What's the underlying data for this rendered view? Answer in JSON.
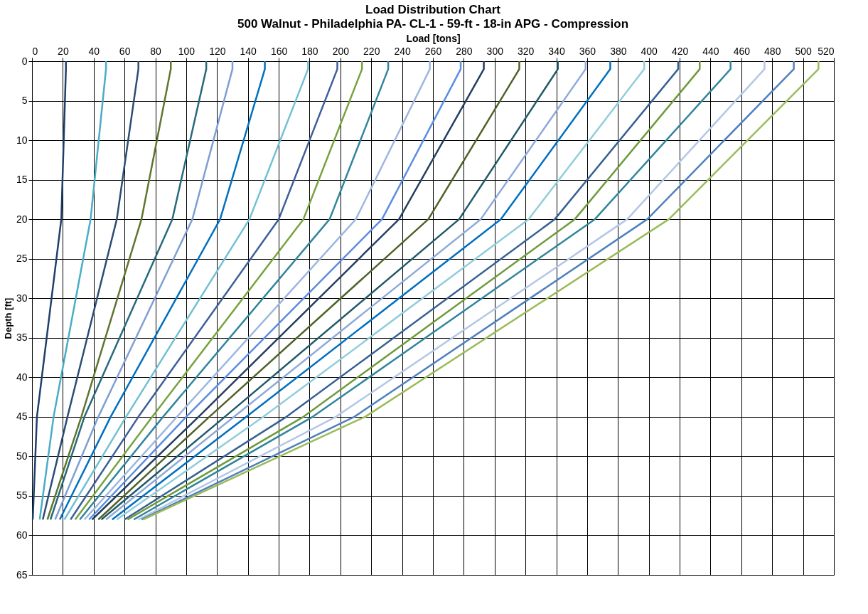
{
  "chart_data": {
    "type": "line",
    "title": "Load Distribution Chart",
    "subtitle": "500 Walnut - Philadelphia PA- CL-1 - 59-ft - 18-in APG - Compression",
    "xlabel": "Load [tons]",
    "ylabel": "Depth [ft]",
    "xlim": [
      0,
      520
    ],
    "xticks": [
      0,
      20,
      40,
      60,
      80,
      100,
      120,
      140,
      160,
      180,
      200,
      220,
      240,
      260,
      280,
      300,
      320,
      340,
      360,
      380,
      400,
      420,
      440,
      460,
      480,
      500,
      520
    ],
    "ylim": [
      65,
      0
    ],
    "yticks": [
      0,
      5,
      10,
      15,
      20,
      25,
      30,
      35,
      40,
      45,
      50,
      55,
      60,
      65
    ],
    "grid": true,
    "legend": false,
    "marker": "none",
    "line_style": "solid",
    "series": [
      {
        "color": "#1f3f6b",
        "x": [
          22,
          22,
          19,
          3.2,
          0.5
        ],
        "values": [
          0,
          1,
          20,
          45,
          58
        ]
      },
      {
        "color": "#4bacc6",
        "x": [
          48,
          48,
          38,
          14,
          5
        ],
        "values": [
          0,
          1,
          20,
          45,
          58
        ]
      },
      {
        "color": "#2c4d75",
        "x": [
          69,
          69,
          55,
          23,
          7
        ],
        "values": [
          0,
          1,
          20,
          45,
          58
        ]
      },
      {
        "color": "#5f7530",
        "x": [
          90,
          90,
          71,
          32,
          10
        ],
        "values": [
          0,
          1,
          20,
          45,
          58
        ]
      },
      {
        "color": "#276a7c",
        "x": [
          113,
          113,
          91,
          34,
          12
        ],
        "values": [
          0,
          1,
          20,
          45,
          58
        ]
      },
      {
        "color": "#7f9fd3",
        "x": [
          130,
          130,
          104,
          43,
          15
        ],
        "values": [
          0,
          1,
          20,
          45,
          58
        ]
      },
      {
        "color": "#0070c0",
        "x": [
          151,
          151,
          122,
          51,
          18
        ],
        "values": [
          0,
          1,
          20,
          45,
          58
        ]
      },
      {
        "color": "#72c0d4",
        "x": [
          179,
          179,
          141,
          61,
          21
        ],
        "values": [
          0,
          1,
          20,
          45,
          58
        ]
      },
      {
        "color": "#3d5f99",
        "x": [
          198,
          198,
          160,
          69,
          25
        ],
        "values": [
          0,
          1,
          20,
          45,
          58
        ]
      },
      {
        "color": "#77a23c",
        "x": [
          214,
          214,
          176,
          78,
          28
        ],
        "values": [
          0,
          1,
          20,
          45,
          58
        ]
      },
      {
        "color": "#31859c",
        "x": [
          231,
          231,
          193,
          85,
          31
        ],
        "values": [
          0,
          1,
          20,
          45,
          58
        ]
      },
      {
        "color": "#9db7e0",
        "x": [
          258,
          258,
          210,
          94,
          34
        ],
        "values": [
          0,
          1,
          20,
          45,
          58
        ]
      },
      {
        "color": "#5b8ee0",
        "x": [
          278,
          278,
          227,
          100,
          37
        ],
        "values": [
          0,
          1,
          20,
          45,
          58
        ]
      },
      {
        "color": "#243f60",
        "x": [
          293,
          293,
          238,
          108,
          39
        ],
        "values": [
          0,
          1,
          20,
          45,
          58
        ]
      },
      {
        "color": "#4f6228",
        "x": [
          316,
          316,
          257,
          115,
          43
        ],
        "values": [
          0,
          1,
          20,
          45,
          58
        ]
      },
      {
        "color": "#215968",
        "x": [
          341,
          341,
          277,
          125,
          45
        ],
        "values": [
          0,
          1,
          20,
          45,
          58
        ]
      },
      {
        "color": "#8eaadb",
        "x": [
          359,
          359,
          291,
          131,
          48
        ],
        "values": [
          0,
          1,
          20,
          45,
          58
        ]
      },
      {
        "color": "#0070c0",
        "x": [
          375,
          375,
          304,
          139,
          52
        ],
        "values": [
          0,
          1,
          20,
          45,
          58
        ]
      },
      {
        "color": "#92cddc",
        "x": [
          397,
          397,
          322,
          150,
          55
        ],
        "values": [
          0,
          1,
          20,
          45,
          58
        ]
      },
      {
        "color": "#376092",
        "x": [
          419,
          419,
          339,
          165,
          60
        ],
        "values": [
          0,
          1,
          20,
          45,
          58
        ]
      },
      {
        "color": "#6e9a3a",
        "x": [
          433,
          433,
          352,
          176,
          62
        ],
        "values": [
          0,
          1,
          20,
          45,
          58
        ]
      },
      {
        "color": "#31859c",
        "x": [
          453,
          453,
          365,
          182,
          66
        ],
        "values": [
          0,
          1,
          20,
          45,
          58
        ]
      },
      {
        "color": "#b4c7e7",
        "x": [
          475,
          475,
          386,
          197,
          69
        ],
        "values": [
          0,
          1,
          20,
          45,
          58
        ]
      },
      {
        "color": "#4f81bd",
        "x": [
          494,
          494,
          399,
          209,
          71
        ],
        "values": [
          0,
          1,
          20,
          45,
          58
        ]
      },
      {
        "color": "#9bbb59",
        "x": [
          510,
          510,
          413,
          216,
          72
        ],
        "values": [
          0,
          1,
          20,
          45,
          58
        ]
      }
    ]
  }
}
